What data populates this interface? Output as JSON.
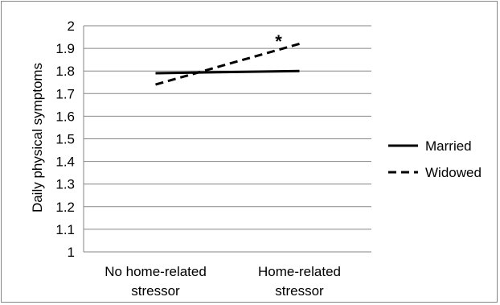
{
  "chart_data": {
    "type": "line",
    "title": "",
    "xlabel": "",
    "ylabel": "Daily physical symptoms",
    "categories": [
      [
        "No home-related",
        "stressor"
      ],
      [
        "Home-related",
        "stressor"
      ]
    ],
    "ylim": [
      1,
      2
    ],
    "yticks": [
      "1",
      "1.1",
      "1.2",
      "1.3",
      "1.4",
      "1.5",
      "1.6",
      "1.7",
      "1.8",
      "1.9",
      "2"
    ],
    "grid": true,
    "legend_position": "right",
    "series": [
      {
        "name": "Married",
        "values": [
          1.79,
          1.8
        ],
        "style": "solid",
        "color": "#000000"
      },
      {
        "name": "Widowed",
        "values": [
          1.74,
          1.92
        ],
        "style": "dashed",
        "color": "#000000"
      }
    ],
    "annotations": [
      {
        "text": "*",
        "category_index": 1,
        "value": 1.96
      }
    ]
  }
}
